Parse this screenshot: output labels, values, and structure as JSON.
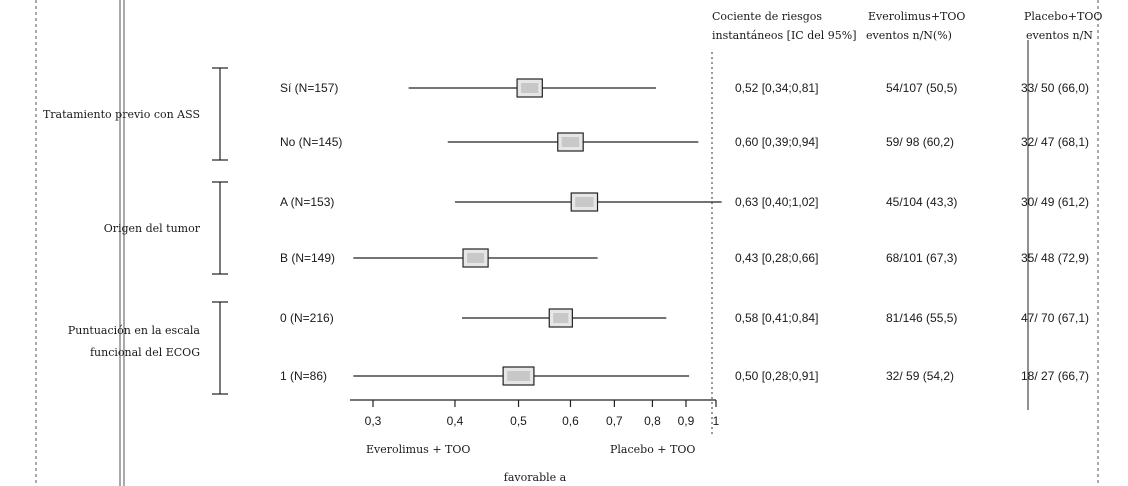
{
  "chart_data": {
    "type": "forest",
    "x_scale": "log",
    "x_ticks": [
      "0,3",
      "0,4",
      "0,5",
      "0,6",
      "0,7",
      "0,8",
      "0,9",
      "1"
    ],
    "x_tick_values": [
      0.3,
      0.4,
      0.5,
      0.6,
      0.7,
      0.8,
      0.9,
      1.0
    ],
    "xlabel_left": "Everolimus + TOO",
    "xlabel_right": "Placebo + TOO",
    "xlabel_bottom": "favorable a",
    "column_headers": [
      [
        "Cociente de riesgos",
        "instantáneos [IC del 95%]"
      ],
      [
        "Everolimus+TOO",
        "eventos n/N(%)"
      ],
      [
        "Placebo+TOO",
        "eventos n/N"
      ]
    ],
    "groups": [
      {
        "label": [
          "Tratamiento previo con ASS"
        ]
      },
      {
        "label": [
          "Origen del tumor"
        ]
      },
      {
        "label": [
          "Puntuación en la escala",
          "funcional del ECOG"
        ]
      }
    ],
    "rows": [
      {
        "label": "Sí (N=157)",
        "hr": 0.52,
        "ci_low": 0.34,
        "ci_high": 0.81,
        "hr_text": "0,52 [0,34;0,81]",
        "evero": "54/107 (50,5)",
        "placebo": "33/ 50 (66,0)"
      },
      {
        "label": "No (N=145)",
        "hr": 0.6,
        "ci_low": 0.39,
        "ci_high": 0.94,
        "hr_text": "0,60 [0,39;0,94]",
        "evero": "59/ 98 (60,2)",
        "placebo": "32/ 47 (68,1)"
      },
      {
        "label": "A (N=153)",
        "hr": 0.63,
        "ci_low": 0.4,
        "ci_high": 1.02,
        "hr_text": "0,63 [0,40;1,02]",
        "evero": "45/104 (43,3)",
        "placebo": "30/ 49 (61,2)"
      },
      {
        "label": "B (N=149)",
        "hr": 0.43,
        "ci_low": 0.28,
        "ci_high": 0.66,
        "hr_text": "0,43 [0,28;0,66]",
        "evero": "68/101 (67,3)",
        "placebo": "35/ 48 (72,9)"
      },
      {
        "label": "0 (N=216)",
        "hr": 0.58,
        "ci_low": 0.41,
        "ci_high": 0.84,
        "hr_text": "0,58 [0,41;0,84]",
        "evero": "81/146 (55,5)",
        "placebo": "47/ 70 (67,1)"
      },
      {
        "label": "1 (N=86)",
        "hr": 0.5,
        "ci_low": 0.28,
        "ci_high": 0.91,
        "hr_text": "0,50 [0,28;0,91]",
        "evero": "32/ 59 (54,2)",
        "placebo": "18/ 27 (66,7)"
      }
    ],
    "grid": false,
    "legend": "none"
  }
}
